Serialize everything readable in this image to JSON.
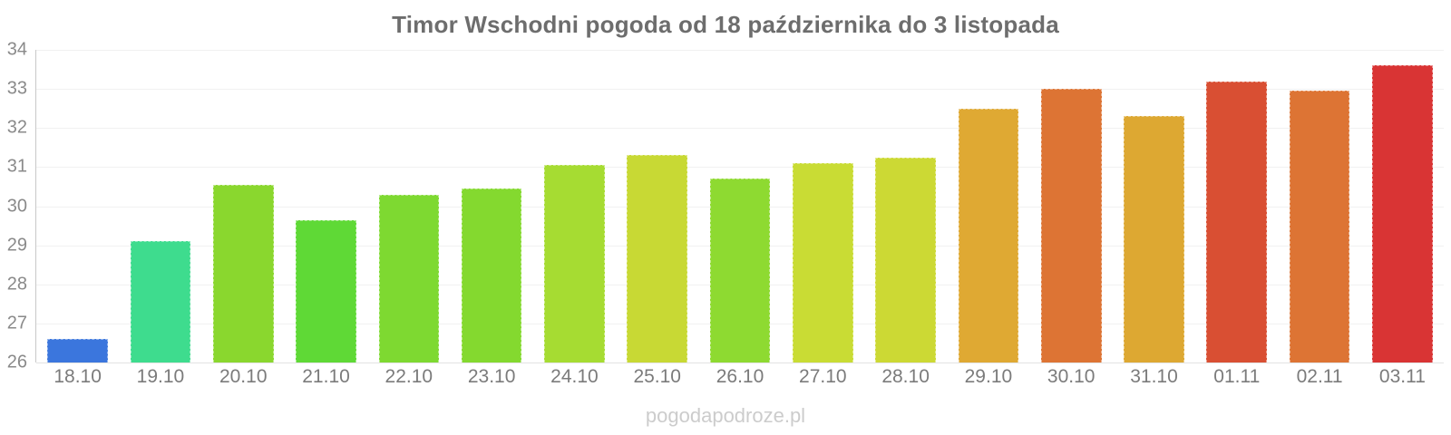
{
  "title": "Timor Wschodni pogoda od 18 października do 3 listopada",
  "watermark": "pogodapodroze.pl",
  "chart_data": {
    "type": "bar",
    "title": "Timor Wschodni pogoda od 18 października do 3 listopada",
    "xlabel": "",
    "ylabel": "",
    "ylim": [
      26,
      34
    ],
    "ytick_step": 1,
    "yticks": [
      26,
      27,
      28,
      29,
      30,
      31,
      32,
      33,
      34
    ],
    "grid": true,
    "legend": false,
    "categories": [
      "18.10",
      "19.10",
      "20.10",
      "21.10",
      "22.10",
      "23.10",
      "24.10",
      "25.10",
      "26.10",
      "27.10",
      "28.10",
      "29.10",
      "30.10",
      "31.10",
      "01.11",
      "02.11",
      "03.11"
    ],
    "values": [
      26.6,
      29.1,
      30.55,
      29.65,
      30.3,
      30.45,
      31.05,
      31.3,
      30.7,
      31.1,
      31.25,
      32.5,
      33.0,
      32.3,
      33.2,
      32.95,
      33.6
    ],
    "bar_colors": [
      "#3b76dd",
      "#3edc8e",
      "#8ad72e",
      "#5fd936",
      "#7ed931",
      "#84d92f",
      "#a6dc32",
      "#c8d934",
      "#8eda31",
      "#c9dc34",
      "#ccd934",
      "#dfa933",
      "#dd7434",
      "#dda832",
      "#d94f33",
      "#dd7434",
      "#d93434"
    ],
    "colors_meaning": {
      "axis_label_color": "#8a8a8a",
      "title_color": "#6d6d6d",
      "gridline_color": "#f1f1f1",
      "watermark_color": "#cccccc"
    }
  }
}
